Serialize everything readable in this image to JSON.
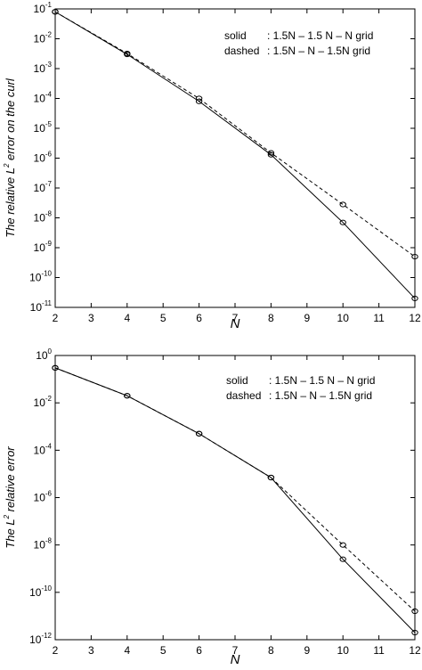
{
  "chart_data": [
    {
      "type": "line",
      "xlabel": "N",
      "ylabel_pre": "The relative L",
      "ylabel_sup": "2",
      "ylabel_post": " error on the curl",
      "x": [
        2,
        4,
        6,
        8,
        10,
        12
      ],
      "xticks": [
        2,
        3,
        4,
        5,
        6,
        7,
        8,
        9,
        10,
        11,
        12
      ],
      "xlim": [
        2,
        12
      ],
      "yscale": "log",
      "ylim": [
        1e-11,
        0.1
      ],
      "ytick_exponents": [
        -11,
        -10,
        -9,
        -8,
        -7,
        -6,
        -5,
        -4,
        -3,
        -2,
        -1
      ],
      "ytick_base": "10",
      "grid": false,
      "legend": {
        "position": "top-right",
        "rows": [
          {
            "style": "solid",
            "key": "solid",
            "sep": ":",
            "text": "1.5N – 1.5 N – N grid"
          },
          {
            "style": "dashed",
            "key": "dashed",
            "sep": ":",
            "text": "1.5N – N – 1.5N grid"
          }
        ]
      },
      "series": [
        {
          "style": "solid",
          "values": [
            0.08,
            0.003,
            8e-05,
            1.3e-06,
            7e-09,
            2e-11
          ]
        },
        {
          "style": "dashed",
          "values": [
            0.08,
            0.0032,
            0.0001,
            1.5e-06,
            2.8e-08,
            5e-10
          ]
        }
      ]
    },
    {
      "type": "line",
      "xlabel": "N",
      "ylabel_pre": "The L",
      "ylabel_sup": "2",
      "ylabel_post": " relative error",
      "x": [
        2,
        4,
        6,
        8,
        10,
        12
      ],
      "xticks": [
        2,
        3,
        4,
        5,
        6,
        7,
        8,
        9,
        10,
        11,
        12
      ],
      "xlim": [
        2,
        12
      ],
      "yscale": "log",
      "ylim": [
        1e-12,
        1
      ],
      "ytick_exponents": [
        -12,
        -10,
        -8,
        -6,
        -4,
        -2,
        0
      ],
      "ytick_base": "10",
      "grid": false,
      "legend": {
        "position": "top-right",
        "rows": [
          {
            "style": "solid",
            "key": "solid",
            "sep": ":",
            "text": "1.5N – 1.5 N – N grid"
          },
          {
            "style": "dashed",
            "key": "dashed",
            "sep": ":",
            "text": "1.5N – N – 1.5N grid"
          }
        ]
      },
      "series": [
        {
          "style": "solid",
          "values": [
            0.3,
            0.02,
            0.0005,
            7e-06,
            2.5e-09,
            2e-12
          ]
        },
        {
          "style": "dashed",
          "values": [
            0.3,
            0.02,
            0.0005,
            7e-06,
            1e-08,
            1.6e-11
          ]
        }
      ]
    }
  ]
}
